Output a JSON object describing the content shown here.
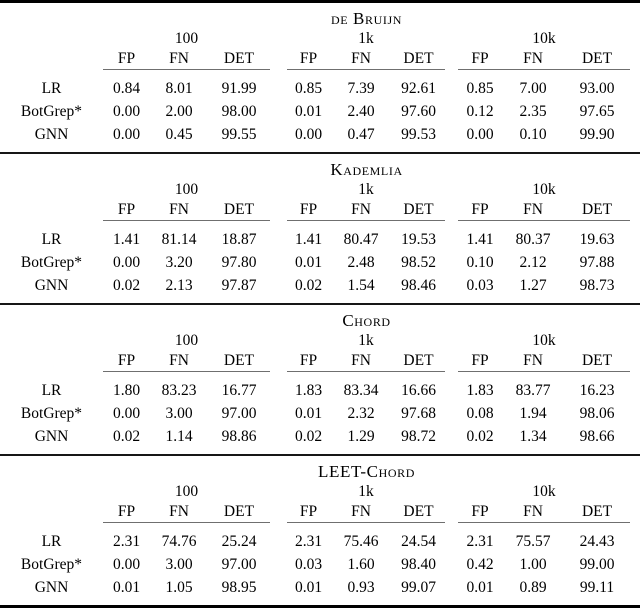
{
  "table": {
    "group_labels": [
      "100",
      "1k",
      "10k"
    ],
    "col_headers": [
      "FP",
      "FN",
      "DET"
    ],
    "row_labels": [
      "LR",
      "BotGrep*",
      "GNN"
    ],
    "colors": {
      "text": "#000000",
      "background": "#ffffff",
      "heavy_rule": "#000000",
      "section_rule": "#161616",
      "cmidrule": "#6f6f6f"
    },
    "sections": [
      {
        "title": "de Bruijn",
        "rows": [
          {
            "label": "LR",
            "values": [
              "0.84",
              "8.01",
              "91.99",
              "0.85",
              "7.39",
              "92.61",
              "0.85",
              "7.00",
              "93.00"
            ]
          },
          {
            "label": "BotGrep*",
            "values": [
              "0.00",
              "2.00",
              "98.00",
              "0.01",
              "2.40",
              "97.60",
              "0.12",
              "2.35",
              "97.65"
            ]
          },
          {
            "label": "GNN",
            "values": [
              "0.00",
              "0.45",
              "99.55",
              "0.00",
              "0.47",
              "99.53",
              "0.00",
              "0.10",
              "99.90"
            ]
          }
        ]
      },
      {
        "title": "Kademlia",
        "rows": [
          {
            "label": "LR",
            "values": [
              "1.41",
              "81.14",
              "18.87",
              "1.41",
              "80.47",
              "19.53",
              "1.41",
              "80.37",
              "19.63"
            ]
          },
          {
            "label": "BotGrep*",
            "values": [
              "0.00",
              "3.20",
              "97.80",
              "0.01",
              "2.48",
              "98.52",
              "0.10",
              "2.12",
              "97.88"
            ]
          },
          {
            "label": "GNN",
            "values": [
              "0.02",
              "2.13",
              "97.87",
              "0.02",
              "1.54",
              "98.46",
              "0.03",
              "1.27",
              "98.73"
            ]
          }
        ]
      },
      {
        "title": "Chord",
        "rows": [
          {
            "label": "LR",
            "values": [
              "1.80",
              "83.23",
              "16.77",
              "1.83",
              "83.34",
              "16.66",
              "1.83",
              "83.77",
              "16.23"
            ]
          },
          {
            "label": "BotGrep*",
            "values": [
              "0.00",
              "3.00",
              "97.00",
              "0.01",
              "2.32",
              "97.68",
              "0.08",
              "1.94",
              "98.06"
            ]
          },
          {
            "label": "GNN",
            "values": [
              "0.02",
              "1.14",
              "98.86",
              "0.02",
              "1.29",
              "98.72",
              "0.02",
              "1.34",
              "98.66"
            ]
          }
        ]
      },
      {
        "title": "LEET-Chord",
        "rows": [
          {
            "label": "LR",
            "values": [
              "2.31",
              "74.76",
              "25.24",
              "2.31",
              "75.46",
              "24.54",
              "2.31",
              "75.57",
              "24.43"
            ]
          },
          {
            "label": "BotGrep*",
            "values": [
              "0.00",
              "3.00",
              "97.00",
              "0.03",
              "1.60",
              "98.40",
              "0.42",
              "1.00",
              "99.00"
            ]
          },
          {
            "label": "GNN",
            "values": [
              "0.01",
              "1.05",
              "98.95",
              "0.01",
              "0.93",
              "99.07",
              "0.01",
              "0.89",
              "99.11"
            ]
          }
        ]
      }
    ]
  }
}
